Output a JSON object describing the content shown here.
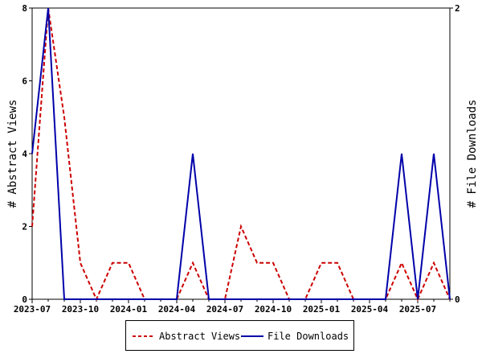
{
  "chart_data": {
    "type": "line",
    "x": [
      "2023-07",
      "2023-08",
      "2023-09",
      "2023-10",
      "2023-11",
      "2023-12",
      "2024-01",
      "2024-02",
      "2024-03",
      "2024-04",
      "2024-05",
      "2024-06",
      "2024-07",
      "2024-08",
      "2024-09",
      "2024-10",
      "2024-11",
      "2024-12",
      "2025-01",
      "2025-02",
      "2025-03",
      "2025-04",
      "2025-05",
      "2025-06",
      "2025-07",
      "2025-08",
      "2025-09"
    ],
    "x_tick_labels": [
      "2023-07",
      "2023-10",
      "2024-01",
      "2024-04",
      "2024-07",
      "2024-10",
      "2025-01",
      "2025-04",
      "2025-07"
    ],
    "series": [
      {
        "name": "Abstract Views",
        "axis": "left",
        "color": "#cc0000",
        "style": "dashed",
        "values": [
          2,
          8,
          5,
          1,
          0,
          1,
          1,
          0,
          0,
          0,
          1,
          0,
          0,
          2,
          1,
          1,
          0,
          0,
          1,
          1,
          0,
          0,
          0,
          1,
          0,
          1,
          0
        ]
      },
      {
        "name": "File Downloads",
        "axis": "right",
        "color": "#0000aa",
        "style": "solid",
        "values": [
          1,
          2,
          0,
          0,
          0,
          0,
          0,
          0,
          0,
          0,
          1,
          0,
          0,
          0,
          0,
          0,
          0,
          0,
          0,
          0,
          0,
          0,
          0,
          1,
          0,
          1,
          0
        ]
      }
    ],
    "y_left": {
      "label": "# Abstract Views",
      "ticks": [
        0,
        2,
        4,
        6,
        8
      ],
      "ylim": [
        0,
        8
      ]
    },
    "y_right": {
      "label": "# File Downloads",
      "ticks": [
        0,
        2
      ],
      "ylim": [
        0,
        2
      ]
    },
    "legend_position": "bottom-center",
    "grid": false
  }
}
